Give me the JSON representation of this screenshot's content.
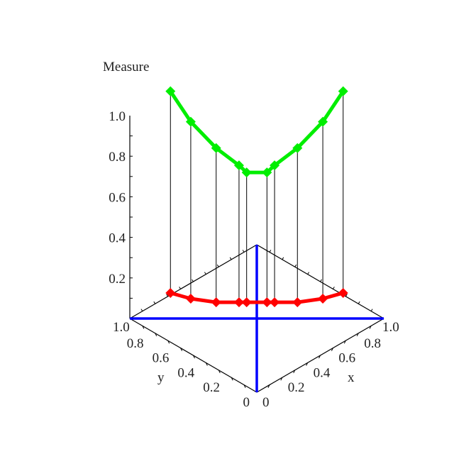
{
  "chart_data": {
    "type": "line",
    "projection": "3d",
    "zlabel": "Measure",
    "xlabel": "x",
    "ylabel": "y",
    "xlim": [
      0,
      1
    ],
    "ylim": [
      0,
      1
    ],
    "zlim": [
      0,
      1.0
    ],
    "x_ticks": [
      "0",
      "0.2",
      "0.4",
      "0.6",
      "0.8",
      "1.0"
    ],
    "y_ticks": [
      "0",
      "0.2",
      "0.4",
      "0.6",
      "0.8",
      "1.0"
    ],
    "z_ticks": [
      "0.2",
      "0.4",
      "0.6",
      "0.8",
      "1.0"
    ],
    "grid": false,
    "blue_lines": [
      {
        "from": [
          0,
          0,
          0
        ],
        "to": [
          1,
          1,
          0
        ]
      },
      {
        "from": [
          1,
          0,
          0
        ],
        "to": [
          0,
          1,
          0
        ]
      }
    ],
    "points_x": [
      0.16,
      0.24,
      0.34,
      0.43,
      0.46,
      0.54,
      0.57,
      0.66,
      0.76,
      0.84
    ],
    "points_y": [
      0.84,
      0.76,
      0.66,
      0.57,
      0.54,
      0.46,
      0.43,
      0.34,
      0.24,
      0.16
    ],
    "series": [
      {
        "color": "#00ee00",
        "z": [
          1.12,
          0.97,
          0.84,
          0.755,
          0.72,
          0.72,
          0.755,
          0.84,
          0.97,
          1.12
        ]
      },
      {
        "color": "#ff0000",
        "z": [
          0.126,
          0.098,
          0.08,
          0.08,
          0.08,
          0.08,
          0.08,
          0.08,
          0.098,
          0.126
        ]
      }
    ]
  }
}
